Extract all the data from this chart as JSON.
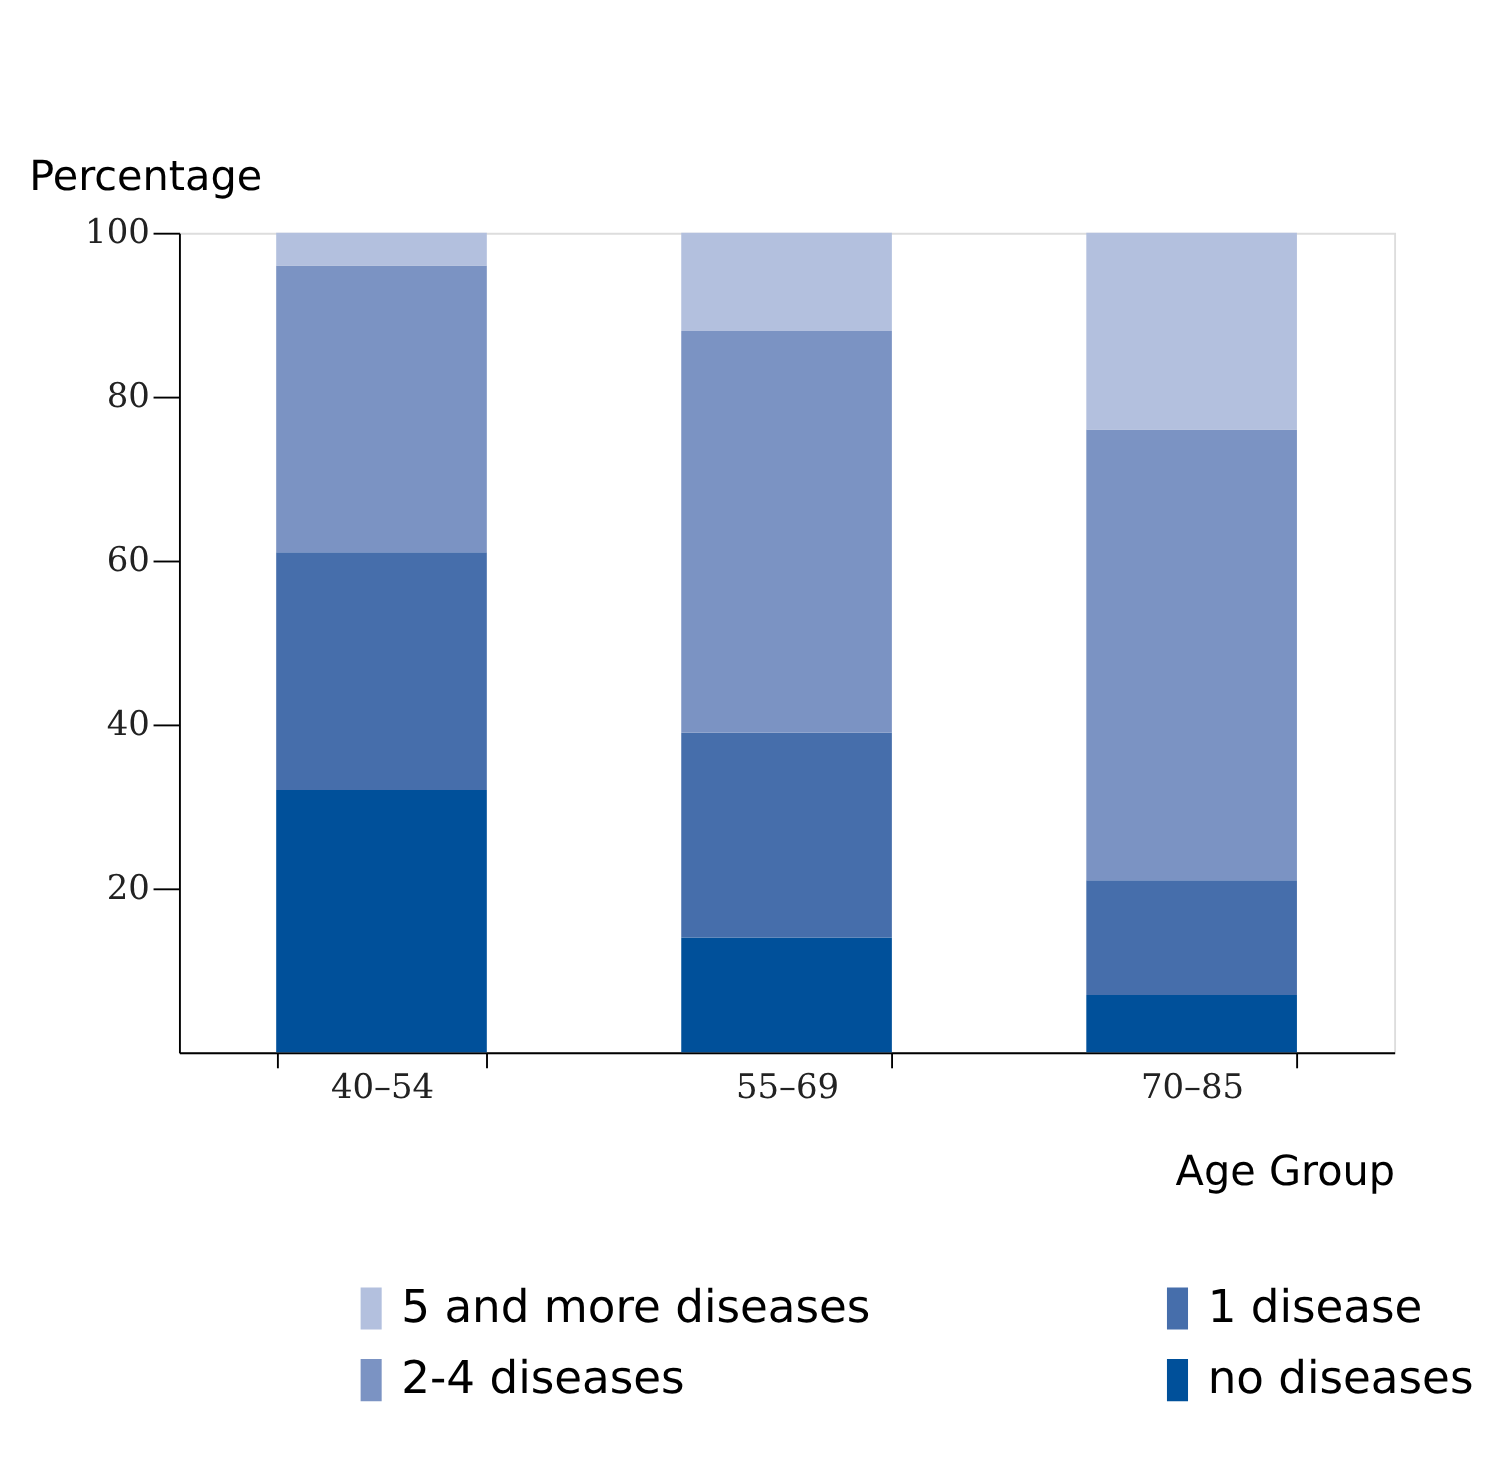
{
  "chart_data": {
    "type": "bar",
    "stacked": true,
    "xlabel": "Age Group",
    "ylabel": "Percentage",
    "categories": [
      "40–54",
      "55–69",
      "70–85"
    ],
    "series": [
      {
        "name": "no diseases",
        "color": "#00509a",
        "values": [
          32,
          14,
          7
        ]
      },
      {
        "name": "1 disease",
        "color": "#466eab",
        "values": [
          29,
          25,
          14
        ]
      },
      {
        "name": "2-4 diseases",
        "color": "#7b93c3",
        "values": [
          35,
          49,
          55
        ]
      },
      {
        "name": "5 and more diseases",
        "color": "#b3c0de",
        "values": [
          4,
          12,
          24
        ]
      }
    ],
    "ylim": [
      0,
      100
    ],
    "yticks": [
      20,
      40,
      60,
      80,
      100
    ],
    "grid": false,
    "legend": "bottom"
  }
}
